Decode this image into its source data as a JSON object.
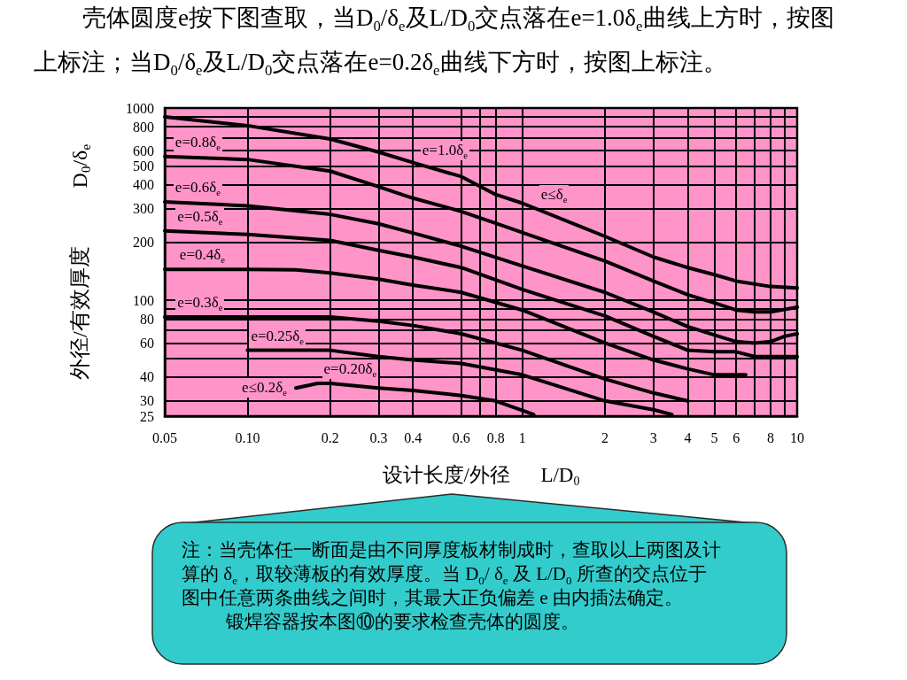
{
  "chart_data": {
    "type": "line",
    "title": "壳体圆度e按下图查取，当D$_{0}$/δ$_{e}$及L/D$_{0}$交点落在e=1.0δ$_{e}$曲线上方时，按图上标注；当D$_{0}$/δ$_{e}$及L/D$_{0}$交点落在e=0.2δ$_{e}$曲线下方时，按图上标注。",
    "xlabel": "设计长度/外径      L/D$_{0}$",
    "ylabel": "外径/有效厚度           D$_{0}$/δ$_{e}$",
    "log": "xy",
    "grid": true,
    "xlim": [
      0.05,
      10
    ],
    "xticks": [
      0.05,
      {
        "value": 0.1,
        "label": "0.10"
      },
      0.2,
      0.3,
      0.4,
      0.6,
      {
        "value": 0.7,
        "label": null
      },
      0.8,
      1,
      2,
      3,
      4,
      5,
      6,
      {
        "value": 7,
        "label": null
      },
      8,
      {
        "value": 9,
        "label": null
      },
      10
    ],
    "ylim": [
      25,
      1000
    ],
    "yticks": [
      25,
      30,
      40,
      {
        "value": 50,
        "label": null
      },
      60,
      {
        "value": 70,
        "label": null
      },
      80,
      {
        "value": 90,
        "label": null
      },
      100,
      200,
      300,
      400,
      500,
      600,
      {
        "value": 700,
        "label": null
      },
      800,
      {
        "value": 900,
        "label": null
      },
      1000
    ],
    "series": [
      {
        "color": "#000000",
        "x": [
          0.05,
          0.1,
          0.2,
          0.3,
          0.4,
          0.6,
          0.8,
          1,
          2,
          3,
          4,
          5,
          6,
          8,
          10
        ],
        "values": [
          900,
          810,
          690,
          590,
          520,
          440,
          355,
          320,
          215,
          168,
          148,
          136,
          126,
          118,
          116
        ]
      },
      {
        "color": "#000000",
        "x": [
          0.05,
          0.1,
          0.2,
          0.3,
          0.4,
          0.6,
          0.8,
          1,
          2,
          3,
          4,
          5,
          6,
          7,
          8,
          10
        ],
        "values": [
          560,
          540,
          470,
          390,
          340,
          290,
          252,
          225,
          160,
          126,
          107,
          97,
          89,
          87,
          87,
          92
        ]
      },
      {
        "color": "#000000",
        "x": [
          0.05,
          0.1,
          0.2,
          0.3,
          0.4,
          0.6,
          1,
          2,
          3,
          4,
          5,
          6,
          7,
          8,
          9,
          10
        ],
        "values": [
          325,
          310,
          280,
          250,
          224,
          191,
          151,
          110,
          87,
          73,
          66,
          61,
          60,
          61,
          65,
          67
        ]
      },
      {
        "color": "#000000",
        "x": [
          0.05,
          0.1,
          0.2,
          0.3,
          0.4,
          0.6,
          1,
          2,
          3,
          4,
          5,
          6,
          7,
          8,
          10
        ],
        "values": [
          230,
          220,
          205,
          182,
          168,
          148,
          114,
          83,
          65,
          55,
          54,
          54,
          51,
          51,
          51
        ]
      },
      {
        "color": "#000000",
        "x": [
          0.05,
          0.1,
          0.15,
          0.2,
          0.3,
          0.4,
          0.6,
          1,
          2,
          3,
          4,
          5,
          6.5
        ],
        "values": [
          145,
          145,
          144,
          139,
          129,
          120,
          110,
          89,
          60,
          49,
          44,
          41,
          41
        ]
      },
      {
        "color": "#000000",
        "x": [
          0.05,
          0.1,
          0.2,
          0.3,
          0.4,
          0.6,
          1,
          2,
          3,
          4
        ],
        "values": [
          82,
          82,
          82,
          78,
          74,
          67,
          55,
          39,
          33,
          30
        ]
      },
      {
        "color": "#000000",
        "x": [
          0.1,
          0.2,
          0.3,
          0.4,
          0.6,
          1,
          2,
          3,
          3.5
        ],
        "values": [
          55,
          55,
          51,
          49,
          47,
          41,
          30,
          27,
          25.5
        ]
      },
      {
        "color": "#000000",
        "x": [
          0.15,
          0.18,
          0.2,
          0.3,
          0.4,
          0.6,
          0.8,
          1.1
        ],
        "values": [
          35,
          37,
          37,
          35,
          34,
          32,
          30,
          25.5
        ]
      }
    ],
    "annotations": [
      {
        "text": "e≤δ$_{e}$",
        "x": 1.135,
        "y": 298
      },
      {
        "text": "e=1.0δ$_{e}$",
        "x": 0.42,
        "y": 510
      },
      {
        "text": "e=0.8δ$_{e}$",
        "x": 0.053,
        "y": 558
      },
      {
        "text": "e=0.6δ$_{e}$",
        "x": 0.053,
        "y": 324
      },
      {
        "text": "e=0.5δ$_{e}$",
        "x": 0.054,
        "y": 229
      },
      {
        "text": "e=0.4δ$_{e}$",
        "x": 0.055,
        "y": 145
      },
      {
        "text": "e=0.3δ$_{e}$",
        "x": 0.054,
        "y": 82
      },
      {
        "text": "e=0.25δ$_{e}$",
        "x": 0.1,
        "y": 55
      },
      {
        "text": "e=0.20δ$_{e}$",
        "x": 0.184,
        "y": 37
      },
      {
        "text": "e≤0.2δ$_{e}$",
        "x": 0.15,
        "y": 35
      },
      "注：当壳体任一断面是由不同厚度板材制成时，查取以上两图及计算的 δ$_{e}$，取较薄板的有效厚度。当 D$_{0}$/ δ$_{e}$ 及 L/D$_{0}$ 所查的交点位于图中任意两条曲线之间时，其最大正负偏差 e 由内插法确定。",
      "锻焊容器按本图⑩的要求检查壳体的圆度。"
    ]
  }
}
